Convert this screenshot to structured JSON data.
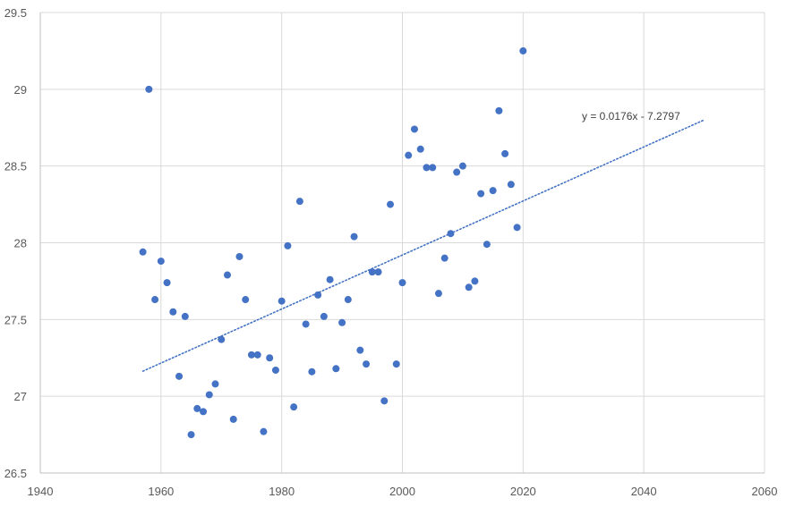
{
  "chart_data": {
    "type": "scatter",
    "title": "",
    "xlabel": "",
    "ylabel": "",
    "xlim": [
      1940,
      2060
    ],
    "ylim": [
      26.5,
      29.5
    ],
    "x_ticks": [
      1940,
      1960,
      1980,
      2000,
      2020,
      2040,
      2060
    ],
    "y_ticks": [
      26.5,
      27,
      27.5,
      28,
      28.5,
      29,
      29.5
    ],
    "x_tick_labels": [
      "1940",
      "1960",
      "1980",
      "2000",
      "2020",
      "2040",
      "2060"
    ],
    "y_tick_labels": [
      "26.5",
      "27",
      "27.5",
      "28",
      "28.5",
      "29",
      "29.5"
    ],
    "grid": true,
    "marker_color": "#4472C4",
    "points": [
      [
        1957,
        27.94
      ],
      [
        1958,
        29.0
      ],
      [
        1959,
        27.63
      ],
      [
        1960,
        27.88
      ],
      [
        1961,
        27.74
      ],
      [
        1962,
        27.55
      ],
      [
        1963,
        27.13
      ],
      [
        1964,
        27.52
      ],
      [
        1965,
        26.75
      ],
      [
        1966,
        26.92
      ],
      [
        1967,
        26.9
      ],
      [
        1968,
        27.01
      ],
      [
        1969,
        27.08
      ],
      [
        1970,
        27.37
      ],
      [
        1971,
        27.79
      ],
      [
        1972,
        26.85
      ],
      [
        1973,
        27.91
      ],
      [
        1974,
        27.63
      ],
      [
        1975,
        27.27
      ],
      [
        1976,
        27.27
      ],
      [
        1977,
        26.77
      ],
      [
        1978,
        27.25
      ],
      [
        1979,
        27.17
      ],
      [
        1980,
        27.62
      ],
      [
        1981,
        27.98
      ],
      [
        1982,
        26.93
      ],
      [
        1983,
        28.27
      ],
      [
        1984,
        27.47
      ],
      [
        1985,
        27.16
      ],
      [
        1986,
        27.66
      ],
      [
        1987,
        27.52
      ],
      [
        1988,
        27.76
      ],
      [
        1989,
        27.18
      ],
      [
        1990,
        27.48
      ],
      [
        1991,
        27.63
      ],
      [
        1992,
        28.04
      ],
      [
        1993,
        27.3
      ],
      [
        1994,
        27.21
      ],
      [
        1995,
        27.81
      ],
      [
        1996,
        27.81
      ],
      [
        1997,
        26.97
      ],
      [
        1998,
        28.25
      ],
      [
        1999,
        27.21
      ],
      [
        2000,
        27.74
      ],
      [
        2001,
        28.57
      ],
      [
        2002,
        28.74
      ],
      [
        2003,
        28.61
      ],
      [
        2004,
        28.49
      ],
      [
        2005,
        28.49
      ],
      [
        2006,
        27.67
      ],
      [
        2007,
        27.9
      ],
      [
        2008,
        28.06
      ],
      [
        2009,
        28.46
      ],
      [
        2010,
        28.5
      ],
      [
        2011,
        27.71
      ],
      [
        2012,
        27.75
      ],
      [
        2013,
        28.32
      ],
      [
        2014,
        27.99
      ],
      [
        2015,
        28.34
      ],
      [
        2016,
        28.86
      ],
      [
        2017,
        28.58
      ],
      [
        2018,
        28.38
      ],
      [
        2019,
        28.1
      ],
      [
        2020,
        29.25
      ]
    ],
    "trendline": {
      "slope": 0.0176,
      "intercept": -7.2797,
      "x_range": [
        1957,
        2050
      ],
      "style": "dotted",
      "color": "#4472C4",
      "equation_label": "y = 0.0176x - 7.2797"
    }
  }
}
